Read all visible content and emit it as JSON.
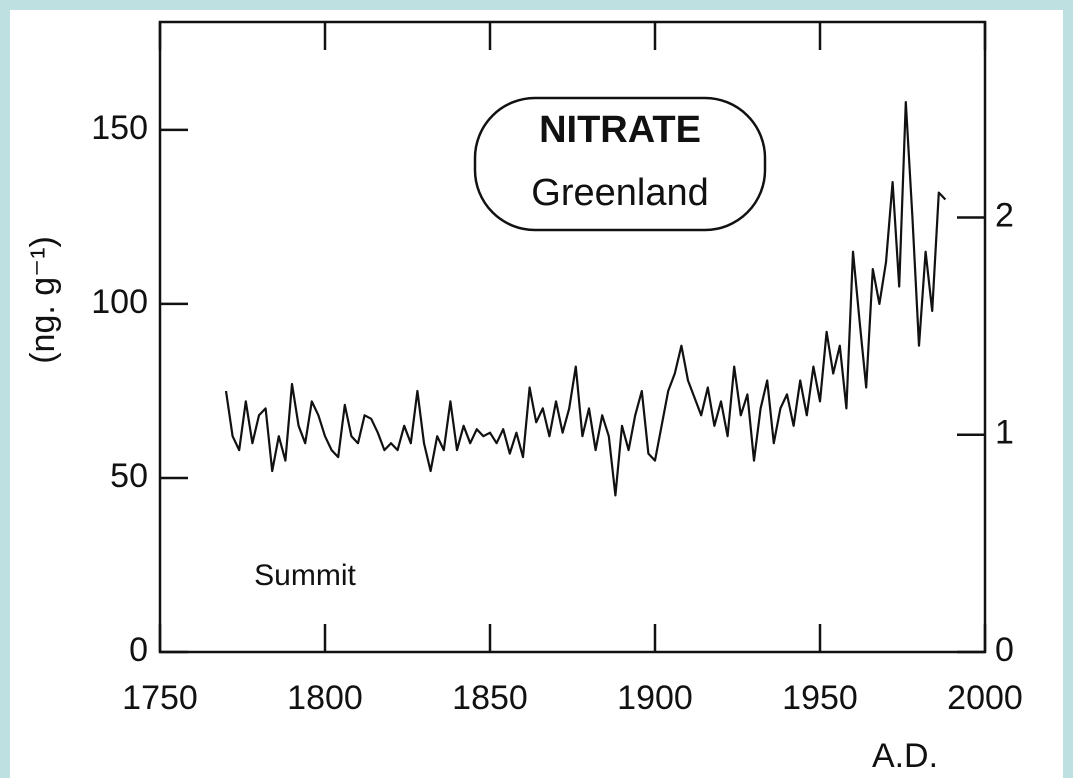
{
  "chart_data": {
    "type": "line",
    "title": "NITRATE",
    "subtitle": "Greenland",
    "y_label": "(ng. g⁻¹)",
    "x_label": "A.D.",
    "annotation": "Summit",
    "x": [
      1770,
      1772,
      1774,
      1776,
      1778,
      1780,
      1782,
      1784,
      1786,
      1788,
      1790,
      1792,
      1794,
      1796,
      1798,
      1800,
      1802,
      1804,
      1806,
      1808,
      1810,
      1812,
      1814,
      1816,
      1818,
      1820,
      1822,
      1824,
      1826,
      1828,
      1830,
      1832,
      1834,
      1836,
      1838,
      1840,
      1842,
      1844,
      1846,
      1848,
      1850,
      1852,
      1854,
      1856,
      1858,
      1860,
      1862,
      1864,
      1866,
      1868,
      1870,
      1872,
      1874,
      1876,
      1878,
      1880,
      1882,
      1884,
      1886,
      1888,
      1890,
      1892,
      1894,
      1896,
      1898,
      1900,
      1902,
      1904,
      1906,
      1908,
      1910,
      1912,
      1914,
      1916,
      1918,
      1920,
      1922,
      1924,
      1926,
      1928,
      1930,
      1932,
      1934,
      1936,
      1938,
      1940,
      1942,
      1944,
      1946,
      1948,
      1950,
      1952,
      1954,
      1956,
      1958,
      1960,
      1962,
      1964,
      1966,
      1968,
      1970,
      1972,
      1974,
      1976,
      1978,
      1980,
      1982,
      1984,
      1986,
      1988
    ],
    "series": [
      {
        "name": "Summit",
        "color": "#111111",
        "values": [
          75,
          62,
          58,
          72,
          60,
          68,
          70,
          52,
          62,
          55,
          77,
          65,
          60,
          72,
          68,
          62,
          58,
          56,
          71,
          62,
          60,
          68,
          67,
          63,
          58,
          60,
          58,
          65,
          60,
          75,
          60,
          52,
          62,
          58,
          72,
          58,
          65,
          60,
          64,
          62,
          63,
          60,
          64,
          57,
          63,
          56,
          76,
          66,
          70,
          62,
          72,
          63,
          70,
          82,
          62,
          70,
          58,
          68,
          62,
          45,
          65,
          58,
          68,
          75,
          57,
          55,
          65,
          75,
          80,
          88,
          78,
          73,
          68,
          76,
          65,
          72,
          62,
          82,
          68,
          74,
          55,
          70,
          78,
          60,
          70,
          74,
          65,
          78,
          68,
          82,
          72,
          92,
          80,
          88,
          70,
          115,
          95,
          76,
          110,
          100,
          112,
          135,
          105,
          158,
          125,
          88,
          115,
          98,
          132,
          130
        ]
      }
    ],
    "xlim": [
      1750,
      2000
    ],
    "xticks": [
      1750,
      1800,
      1850,
      1900,
      1950,
      2000
    ],
    "ylim": [
      0,
      181
    ],
    "yticks": [
      0,
      50,
      100,
      150
    ],
    "y2lim": [
      0,
      2.9
    ],
    "y2ticks": [
      0,
      1,
      2
    ]
  }
}
